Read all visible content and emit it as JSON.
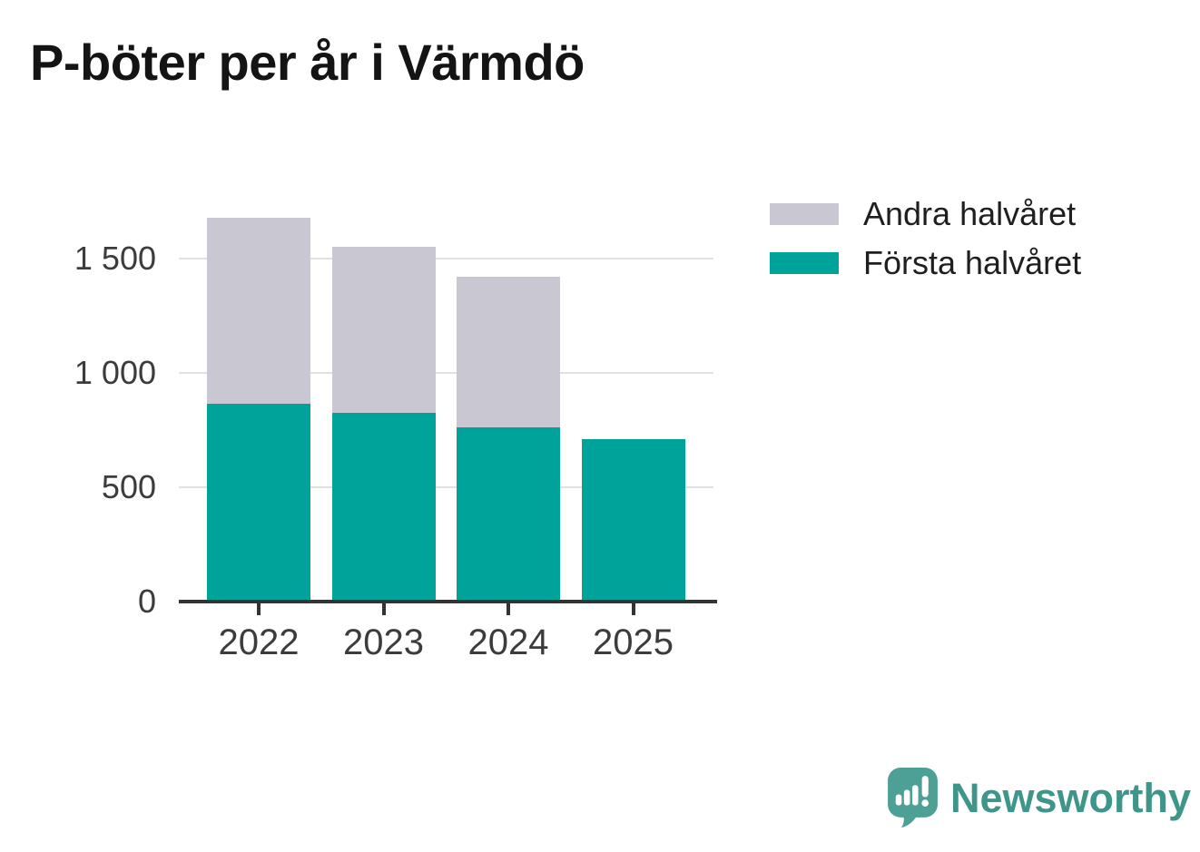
{
  "title": "P-böter per år i Värmdö",
  "legend": {
    "items": [
      {
        "label": "Andra halvåret",
        "color": "#C9C7D1"
      },
      {
        "label": "Första halvåret",
        "color": "#00A399"
      }
    ]
  },
  "chart_data": {
    "type": "bar",
    "stacked": true,
    "title": "P-böter per år i Värmdö",
    "categories": [
      "2022",
      "2023",
      "2024",
      "2025"
    ],
    "series": [
      {
        "name": "Första halvåret",
        "color": "#00A399",
        "values": [
          865,
          825,
          760,
          710
        ]
      },
      {
        "name": "Andra halvåret",
        "color": "#C9C7D1",
        "values": [
          815,
          725,
          660,
          0
        ]
      }
    ],
    "totals": [
      1680,
      1550,
      1420,
      710
    ],
    "xlabel": "",
    "ylabel": "",
    "ylim": [
      0,
      1700
    ],
    "yticks": [
      0,
      500,
      1000,
      1500
    ],
    "ytick_labels": [
      "0",
      "500",
      "1 000",
      "1 500"
    ],
    "grid": true,
    "legend_position": "top-right"
  },
  "footer": {
    "brand": "Newsworthy",
    "brand_color": "#3E968B",
    "icon": "newsworthy-logo-icon",
    "icon_color": "#4CA096"
  },
  "colors": {
    "axis": "#333333",
    "gridline": "#E1E1E3",
    "tick_label": "#3C3C3C",
    "title_text": "#141414",
    "background": "#FFFFFF"
  }
}
